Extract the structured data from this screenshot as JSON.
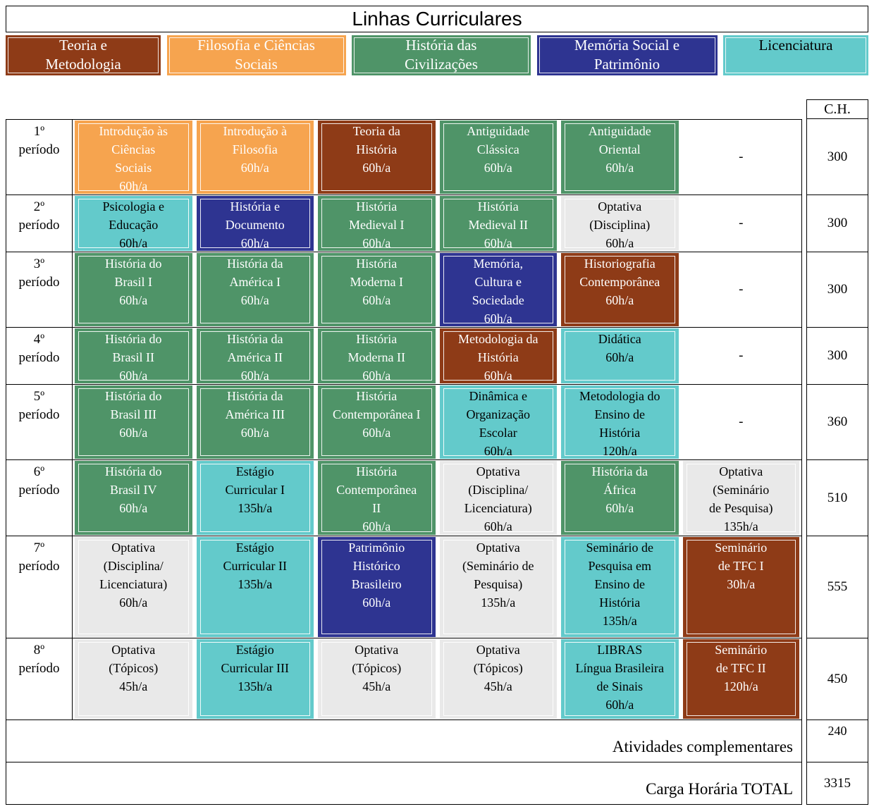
{
  "title": "Linhas Curriculares",
  "ch_header": "C.H.",
  "empty_cell": "-",
  "lines": {
    "teoria": {
      "bg": "#8E3B17",
      "fg": "#FFFFFF"
    },
    "filosofia": {
      "bg": "#F6A44F",
      "fg": "#FFFFFF"
    },
    "civilizacoes": {
      "bg": "#4F9468",
      "fg": "#FFFFFF"
    },
    "memoria": {
      "bg": "#2E3491",
      "fg": "#FFFFFF"
    },
    "licenciatura": {
      "bg": "#63CACB",
      "fg": "#000000"
    },
    "optativa": {
      "bg": "#E9E9E9",
      "fg": "#000000"
    }
  },
  "legend": [
    {
      "label": "Teoria e\nMetodologia",
      "line": "teoria"
    },
    {
      "label": "Filosofia e Ciências\nSociais",
      "line": "filosofia"
    },
    {
      "label": "História das\nCivilizações",
      "line": "civilizacoes"
    },
    {
      "label": "Memória Social e\nPatrimônio",
      "line": "memoria"
    },
    {
      "label": "Licenciatura",
      "line": "licenciatura"
    }
  ],
  "rows": [
    {
      "period": "1º\nperíodo",
      "ch": "300",
      "cells": [
        {
          "name": "Introdução às\nCiências\nSociais",
          "hours": "60h/a",
          "line": "filosofia"
        },
        {
          "name": "Introdução à\nFilosofia",
          "hours": "60h/a",
          "line": "filosofia"
        },
        {
          "name": "Teoria da\nHistória",
          "hours": "60h/a",
          "line": "teoria"
        },
        {
          "name": "Antiguidade\nClássica",
          "hours": "60h/a",
          "line": "civilizacoes"
        },
        {
          "name": "Antiguidade\nOriental",
          "hours": "60h/a",
          "line": "civilizacoes"
        },
        null
      ]
    },
    {
      "period": "2º\nperíodo",
      "ch": "300",
      "cells": [
        {
          "name": "Psicologia e\nEducação",
          "hours": "60h/a",
          "line": "licenciatura"
        },
        {
          "name": "História e\nDocumento",
          "hours": "60h/a",
          "line": "memoria"
        },
        {
          "name": "História\nMedieval I",
          "hours": "60h/a",
          "line": "civilizacoes"
        },
        {
          "name": "História\nMedieval II",
          "hours": "60h/a",
          "line": "civilizacoes"
        },
        {
          "name": "Optativa\n(Disciplina)",
          "hours": "60h/a",
          "line": "optativa"
        },
        null
      ]
    },
    {
      "period": "3º\nperíodo",
      "ch": "300",
      "cells": [
        {
          "name": "História do\nBrasil I",
          "hours": "60h/a",
          "line": "civilizacoes"
        },
        {
          "name": "História da\nAmérica I",
          "hours": "60h/a",
          "line": "civilizacoes"
        },
        {
          "name": "História\nModerna I",
          "hours": "60h/a",
          "line": "civilizacoes"
        },
        {
          "name": "Memória,\nCultura e\nSociedade",
          "hours": "60h/a",
          "line": "memoria"
        },
        {
          "name": "Historiografia\nContemporânea",
          "hours": "60h/a",
          "line": "teoria"
        },
        null
      ]
    },
    {
      "period": "4º\nperíodo",
      "ch": "300",
      "cells": [
        {
          "name": "História do\nBrasil II",
          "hours": "60h/a",
          "line": "civilizacoes"
        },
        {
          "name": "História da\nAmérica II",
          "hours": "60h/a",
          "line": "civilizacoes"
        },
        {
          "name": "História\nModerna II",
          "hours": "60h/a",
          "line": "civilizacoes"
        },
        {
          "name": "Metodologia da\nHistória",
          "hours": "60h/a",
          "line": "teoria"
        },
        {
          "name": "Didática",
          "hours": "60h/a",
          "line": "licenciatura"
        },
        null
      ]
    },
    {
      "period": "5º\nperíodo",
      "ch": "360",
      "cells": [
        {
          "name": "História do\nBrasil III",
          "hours": "60h/a",
          "line": "civilizacoes"
        },
        {
          "name": "História da\nAmérica III",
          "hours": "60h/a",
          "line": "civilizacoes"
        },
        {
          "name": "História\nContemporânea I",
          "hours": "60h/a",
          "line": "civilizacoes"
        },
        {
          "name": "Dinâmica e\nOrganização\nEscolar",
          "hours": "60h/a",
          "line": "licenciatura"
        },
        {
          "name": "Metodologia do\nEnsino de\nHistória",
          "hours": "120h/a",
          "line": "licenciatura"
        },
        null
      ]
    },
    {
      "period": "6º\nperíodo",
      "ch": "510",
      "cells": [
        {
          "name": "História do\nBrasil IV",
          "hours": "60h/a",
          "line": "civilizacoes"
        },
        {
          "name": "Estágio\nCurricular I",
          "hours": "135h/a",
          "line": "licenciatura"
        },
        {
          "name": "História\nContemporânea\nII",
          "hours": "60h/a",
          "line": "civilizacoes"
        },
        {
          "name": "Optativa\n(Disciplina/\nLicenciatura)",
          "hours": "60h/a",
          "line": "optativa"
        },
        {
          "name": "História da\nÁfrica",
          "hours": "60h/a",
          "line": "civilizacoes"
        },
        {
          "name": "Optativa\n(Seminário\nde Pesquisa)",
          "hours": "135h/a",
          "line": "optativa"
        }
      ]
    },
    {
      "period": "7º\nperíodo",
      "ch": "555",
      "cells": [
        {
          "name": "Optativa\n(Disciplina/\nLicenciatura)",
          "hours": "60h/a",
          "line": "optativa"
        },
        {
          "name": "Estágio\nCurricular II",
          "hours": "135h/a",
          "line": "licenciatura"
        },
        {
          "name": "Patrimônio\nHistórico\nBrasileiro",
          "hours": "60h/a",
          "line": "memoria"
        },
        {
          "name": "Optativa\n(Seminário de\nPesquisa)",
          "hours": "135h/a",
          "line": "optativa"
        },
        {
          "name": "Seminário de\nPesquisa em\nEnsino de\nHistória",
          "hours": "135h/a",
          "line": "licenciatura"
        },
        {
          "name": "Seminário\nde TFC I",
          "hours": "30h/a",
          "line": "teoria"
        }
      ]
    },
    {
      "period": "8º\nperíodo",
      "ch": "450",
      "cells": [
        {
          "name": "Optativa\n(Tópicos)",
          "hours": "45h/a",
          "line": "optativa"
        },
        {
          "name": "Estágio\nCurricular III",
          "hours": "135h/a",
          "line": "licenciatura"
        },
        {
          "name": "Optativa\n(Tópicos)",
          "hours": "45h/a",
          "line": "optativa"
        },
        {
          "name": "Optativa\n(Tópicos)",
          "hours": "45h/a",
          "line": "optativa"
        },
        {
          "name": "LIBRAS\nLíngua Brasileira\nde Sinais",
          "hours": "60h/a",
          "line": "licenciatura"
        },
        {
          "name": "Seminário\nde TFC II",
          "hours": "120h/a",
          "line": "teoria"
        }
      ]
    }
  ],
  "footer": [
    {
      "label": "Atividades complementares",
      "value": "240"
    },
    {
      "label": "Carga Horária TOTAL",
      "value": "3315"
    }
  ]
}
